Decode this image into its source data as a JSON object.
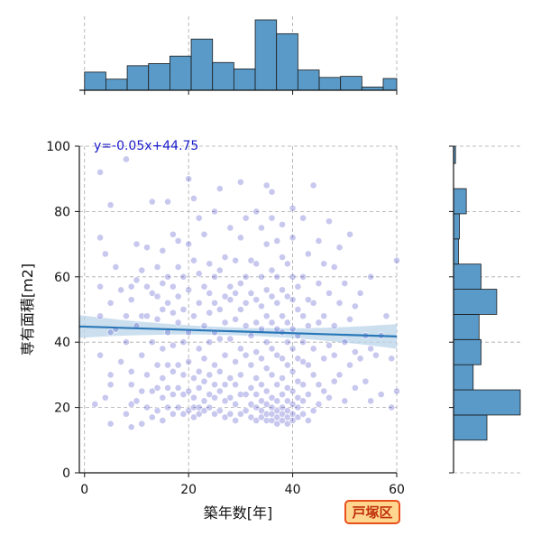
{
  "colors": {
    "hist": "#5a9ac8",
    "hist_edge": "#1a1a1a",
    "points": "#3b3bc4",
    "reg_line": "#2a78b8",
    "ci_band": "#b9d4ea",
    "equation": "#1a1acc",
    "grid": "#a8a8a8",
    "badge_bg": "#ffd690",
    "badge_border": "#e8501c",
    "badge_text": "#c0300a"
  },
  "badge": {
    "label": "戸塚区"
  },
  "chart_data": {
    "type": "scatter",
    "xlabel": "築年数[年]",
    "ylabel": "専有面積[m2]",
    "xlim": [
      -1,
      60
    ],
    "ylim": [
      0,
      100
    ],
    "x_ticks": [
      0,
      20,
      40,
      60
    ],
    "y_ticks": [
      0,
      20,
      40,
      60,
      80,
      100
    ],
    "grid": true,
    "regression": {
      "slope": -0.05,
      "intercept": 44.75,
      "label": "y=-0.05x+44.75",
      "ci_halfwidth_left": 3.5,
      "ci_halfwidth_mid": 1.2,
      "ci_halfwidth_right": 3.8
    },
    "points": [
      [
        2,
        21
      ],
      [
        3,
        36
      ],
      [
        3,
        48
      ],
      [
        3,
        57
      ],
      [
        3,
        72
      ],
      [
        3,
        92
      ],
      [
        4,
        23
      ],
      [
        4,
        67
      ],
      [
        5,
        15
      ],
      [
        5,
        27
      ],
      [
        5,
        30
      ],
      [
        5,
        43
      ],
      [
        5,
        52
      ],
      [
        5,
        82
      ],
      [
        6,
        63
      ],
      [
        6,
        44
      ],
      [
        7,
        56
      ],
      [
        7,
        34
      ],
      [
        8,
        18
      ],
      [
        8,
        40
      ],
      [
        8,
        48
      ],
      [
        8,
        96
      ],
      [
        9,
        14
      ],
      [
        9,
        21
      ],
      [
        9,
        27
      ],
      [
        9,
        31
      ],
      [
        9,
        53
      ],
      [
        9,
        57
      ],
      [
        10,
        22
      ],
      [
        10,
        45
      ],
      [
        10,
        59
      ],
      [
        10,
        70
      ],
      [
        11,
        15
      ],
      [
        11,
        25
      ],
      [
        11,
        36
      ],
      [
        11,
        48
      ],
      [
        11,
        62
      ],
      [
        12,
        20
      ],
      [
        12,
        30
      ],
      [
        12,
        48
      ],
      [
        12,
        57
      ],
      [
        12,
        69
      ],
      [
        13,
        17
      ],
      [
        13,
        25
      ],
      [
        13,
        40
      ],
      [
        13,
        55
      ],
      [
        13,
        83
      ],
      [
        14,
        19
      ],
      [
        14,
        26
      ],
      [
        14,
        33
      ],
      [
        14,
        47
      ],
      [
        14,
        54
      ],
      [
        14,
        63
      ],
      [
        15,
        16
      ],
      [
        15,
        23
      ],
      [
        15,
        29
      ],
      [
        15,
        38
      ],
      [
        15,
        50
      ],
      [
        15,
        58
      ],
      [
        15,
        68
      ],
      [
        16,
        20
      ],
      [
        16,
        26
      ],
      [
        16,
        33
      ],
      [
        16,
        43
      ],
      [
        16,
        52
      ],
      [
        16,
        60
      ],
      [
        16,
        83
      ],
      [
        17,
        18
      ],
      [
        17,
        24
      ],
      [
        17,
        31
      ],
      [
        17,
        39
      ],
      [
        17,
        49
      ],
      [
        17,
        57
      ],
      [
        17,
        73
      ],
      [
        18,
        20
      ],
      [
        18,
        26
      ],
      [
        18,
        33
      ],
      [
        18,
        46
      ],
      [
        18,
        54
      ],
      [
        18,
        63
      ],
      [
        18,
        71
      ],
      [
        19,
        18
      ],
      [
        19,
        24
      ],
      [
        19,
        30
      ],
      [
        19,
        40
      ],
      [
        19,
        50
      ],
      [
        19,
        60
      ],
      [
        20,
        19
      ],
      [
        20,
        25
      ],
      [
        20,
        34
      ],
      [
        20,
        43
      ],
      [
        20,
        56
      ],
      [
        20,
        70
      ],
      [
        20,
        90
      ],
      [
        21,
        17
      ],
      [
        21,
        20
      ],
      [
        21,
        23
      ],
      [
        21,
        29
      ],
      [
        21,
        48
      ],
      [
        21,
        65
      ],
      [
        21,
        84
      ],
      [
        22,
        18
      ],
      [
        22,
        20
      ],
      [
        22,
        26
      ],
      [
        22,
        31
      ],
      [
        22,
        38
      ],
      [
        22,
        52
      ],
      [
        22,
        61
      ],
      [
        22,
        78
      ],
      [
        23,
        19
      ],
      [
        23,
        22
      ],
      [
        23,
        28
      ],
      [
        23,
        35
      ],
      [
        23,
        45
      ],
      [
        23,
        57
      ],
      [
        23,
        73
      ],
      [
        24,
        20
      ],
      [
        24,
        24
      ],
      [
        24,
        30
      ],
      [
        24,
        40
      ],
      [
        24,
        49
      ],
      [
        24,
        55
      ],
      [
        24,
        64
      ],
      [
        25,
        18
      ],
      [
        25,
        23
      ],
      [
        25,
        27
      ],
      [
        25,
        33
      ],
      [
        25,
        43
      ],
      [
        25,
        52
      ],
      [
        25,
        60
      ],
      [
        25,
        80
      ],
      [
        26,
        19
      ],
      [
        26,
        25
      ],
      [
        26,
        31
      ],
      [
        26,
        41
      ],
      [
        26,
        50
      ],
      [
        26,
        62
      ],
      [
        26,
        87
      ],
      [
        27,
        17
      ],
      [
        27,
        22
      ],
      [
        27,
        27
      ],
      [
        27,
        36
      ],
      [
        27,
        46
      ],
      [
        27,
        54
      ],
      [
        27,
        66
      ],
      [
        28,
        18
      ],
      [
        28,
        23
      ],
      [
        28,
        29
      ],
      [
        28,
        41
      ],
      [
        28,
        53
      ],
      [
        28,
        57
      ],
      [
        28,
        75
      ],
      [
        29,
        16
      ],
      [
        29,
        21
      ],
      [
        29,
        27
      ],
      [
        29,
        34
      ],
      [
        29,
        47
      ],
      [
        29,
        55
      ],
      [
        29,
        65
      ],
      [
        30,
        18
      ],
      [
        30,
        24
      ],
      [
        30,
        30
      ],
      [
        30,
        38
      ],
      [
        30,
        50
      ],
      [
        30,
        58
      ],
      [
        30,
        72
      ],
      [
        30,
        89
      ],
      [
        31,
        19
      ],
      [
        31,
        24
      ],
      [
        31,
        36
      ],
      [
        31,
        45
      ],
      [
        31,
        52
      ],
      [
        31,
        60
      ],
      [
        31,
        78
      ],
      [
        32,
        17
      ],
      [
        32,
        21
      ],
      [
        32,
        26
      ],
      [
        32,
        33
      ],
      [
        32,
        42
      ],
      [
        32,
        55
      ],
      [
        32,
        65
      ],
      [
        33,
        16
      ],
      [
        33,
        20
      ],
      [
        33,
        24
      ],
      [
        33,
        29
      ],
      [
        33,
        37
      ],
      [
        33,
        46
      ],
      [
        33,
        53
      ],
      [
        33,
        64
      ],
      [
        33,
        80
      ],
      [
        34,
        17
      ],
      [
        34,
        19
      ],
      [
        34,
        22
      ],
      [
        34,
        27
      ],
      [
        34,
        35
      ],
      [
        34,
        44
      ],
      [
        34,
        51
      ],
      [
        34,
        60
      ],
      [
        34,
        75
      ],
      [
        35,
        16
      ],
      [
        35,
        18
      ],
      [
        35,
        21
      ],
      [
        35,
        25
      ],
      [
        35,
        32
      ],
      [
        35,
        40
      ],
      [
        35,
        48
      ],
      [
        35,
        56
      ],
      [
        35,
        70
      ],
      [
        35,
        88
      ],
      [
        36,
        16
      ],
      [
        36,
        18
      ],
      [
        36,
        20
      ],
      [
        36,
        23
      ],
      [
        36,
        30
      ],
      [
        36,
        38
      ],
      [
        36,
        46
      ],
      [
        36,
        54
      ],
      [
        36,
        62
      ],
      [
        36,
        78
      ],
      [
        36,
        86
      ],
      [
        37,
        15
      ],
      [
        37,
        17
      ],
      [
        37,
        19
      ],
      [
        37,
        22
      ],
      [
        37,
        27
      ],
      [
        37,
        36
      ],
      [
        37,
        44
      ],
      [
        37,
        52
      ],
      [
        37,
        60
      ],
      [
        37,
        71
      ],
      [
        38,
        16
      ],
      [
        38,
        18
      ],
      [
        38,
        20
      ],
      [
        38,
        24
      ],
      [
        38,
        29
      ],
      [
        38,
        35
      ],
      [
        38,
        43
      ],
      [
        38,
        48
      ],
      [
        38,
        56
      ],
      [
        38,
        66
      ],
      [
        38,
        76
      ],
      [
        39,
        15
      ],
      [
        39,
        17
      ],
      [
        39,
        19
      ],
      [
        39,
        22
      ],
      [
        39,
        26
      ],
      [
        39,
        33
      ],
      [
        39,
        40
      ],
      [
        39,
        46
      ],
      [
        39,
        54
      ],
      [
        39,
        64
      ],
      [
        40,
        16
      ],
      [
        40,
        18
      ],
      [
        40,
        21
      ],
      [
        40,
        25
      ],
      [
        40,
        31
      ],
      [
        40,
        38
      ],
      [
        40,
        44
      ],
      [
        40,
        53
      ],
      [
        40,
        60
      ],
      [
        40,
        72
      ],
      [
        40,
        81
      ],
      [
        41,
        17
      ],
      [
        41,
        20
      ],
      [
        41,
        23
      ],
      [
        41,
        28
      ],
      [
        41,
        35
      ],
      [
        41,
        42
      ],
      [
        41,
        50
      ],
      [
        41,
        57
      ],
      [
        42,
        18
      ],
      [
        42,
        22
      ],
      [
        42,
        27
      ],
      [
        42,
        34
      ],
      [
        42,
        40
      ],
      [
        42,
        48
      ],
      [
        42,
        60
      ],
      [
        42,
        78
      ],
      [
        43,
        16
      ],
      [
        43,
        24
      ],
      [
        43,
        33
      ],
      [
        43,
        45
      ],
      [
        43,
        53
      ],
      [
        43,
        67
      ],
      [
        44,
        19
      ],
      [
        44,
        30
      ],
      [
        44,
        38
      ],
      [
        44,
        52
      ],
      [
        44,
        88
      ],
      [
        45,
        21
      ],
      [
        45,
        27
      ],
      [
        45,
        46
      ],
      [
        45,
        58
      ],
      [
        45,
        71
      ],
      [
        46,
        25
      ],
      [
        46,
        35
      ],
      [
        46,
        48
      ],
      [
        46,
        64
      ],
      [
        47,
        23
      ],
      [
        47,
        39
      ],
      [
        47,
        55
      ],
      [
        47,
        77
      ],
      [
        48,
        28
      ],
      [
        48,
        36
      ],
      [
        48,
        45
      ],
      [
        48,
        63
      ],
      [
        49,
        30
      ],
      [
        49,
        52
      ],
      [
        49,
        69
      ],
      [
        50,
        22
      ],
      [
        50,
        40
      ],
      [
        50,
        58
      ],
      [
        51,
        33
      ],
      [
        51,
        47
      ],
      [
        51,
        73
      ],
      [
        52,
        26
      ],
      [
        52,
        37
      ],
      [
        52,
        51
      ],
      [
        53,
        35
      ],
      [
        53,
        55
      ],
      [
        54,
        28
      ],
      [
        54,
        42
      ],
      [
        55,
        22
      ],
      [
        55,
        38
      ],
      [
        55,
        60
      ],
      [
        56,
        36
      ],
      [
        57,
        24
      ],
      [
        57,
        42
      ],
      [
        58,
        48
      ],
      [
        59,
        20
      ],
      [
        59,
        35
      ],
      [
        60,
        65
      ],
      [
        60,
        25
      ]
    ],
    "hist_top": {
      "bins": [
        0,
        4.1,
        8.2,
        12.3,
        16.4,
        20.5,
        24.6,
        28.7,
        32.8,
        36.9,
        41.0,
        45.1,
        49.2,
        53.3,
        57.4,
        60
      ],
      "counts": [
        8.5,
        5.2,
        11.5,
        12.5,
        16.0,
        24.0,
        13.0,
        10.0,
        33.0,
        26.5,
        9.5,
        6.0,
        6.5,
        1.5,
        5.5
      ]
    },
    "hist_right": {
      "bins": [
        10,
        17.7,
        25.4,
        33.1,
        40.8,
        48.5,
        56.2,
        63.9,
        71.6,
        79.3,
        87.0,
        94.7,
        100
      ],
      "counts": [
        17,
        34,
        10,
        14,
        13,
        22,
        14,
        2.5,
        3.0,
        6.5,
        0,
        1.0
      ]
    }
  }
}
